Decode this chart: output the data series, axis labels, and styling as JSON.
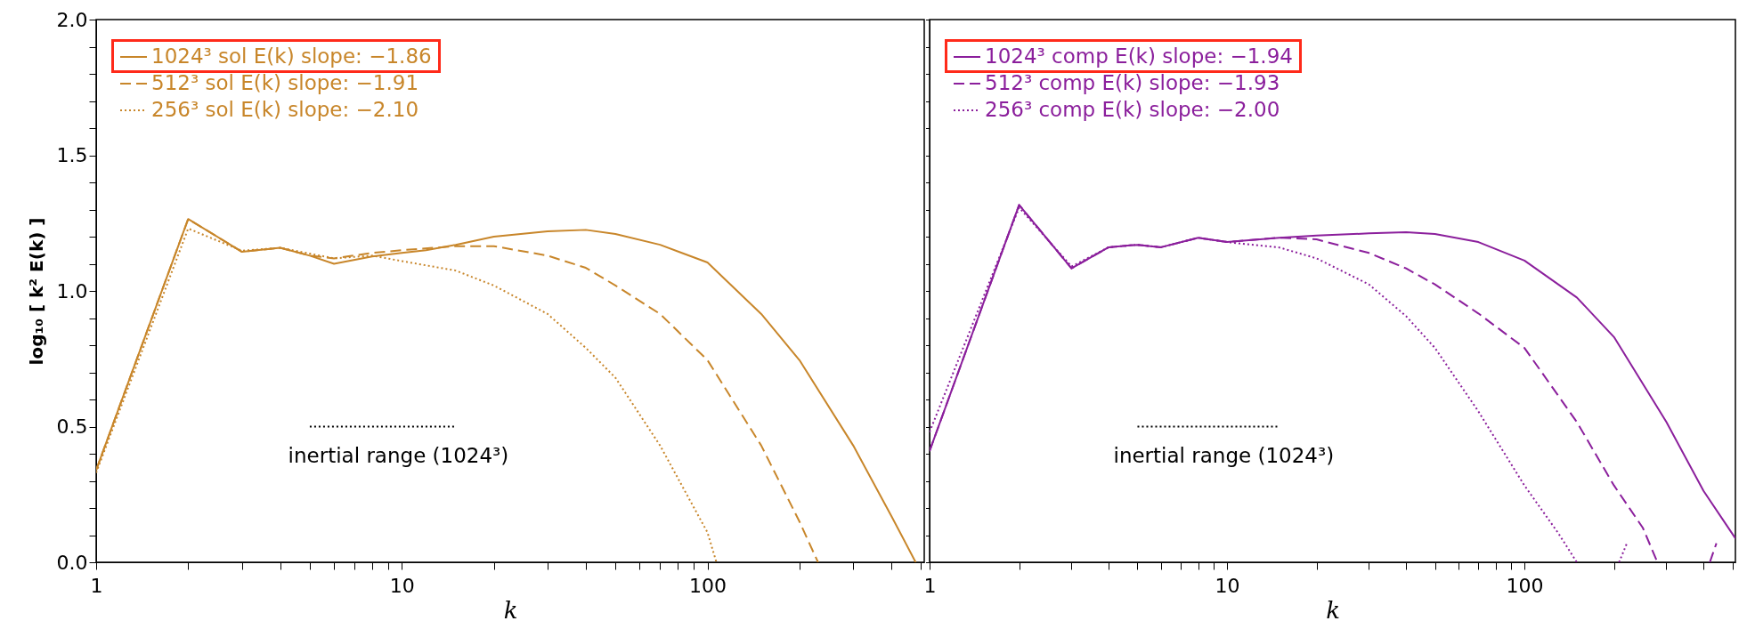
{
  "chart_data": [
    {
      "type": "line",
      "log": "x",
      "xlabel": "k",
      "ylabel": "log₁₀ [ k² E(k) ]",
      "xlim": [
        1,
        512
      ],
      "ylim": [
        0,
        2.0
      ],
      "xticks": [
        1,
        {
          "value": 2,
          "label": null
        },
        {
          "value": 3,
          "label": null
        },
        {
          "value": 4,
          "label": null
        },
        {
          "value": 5,
          "label": null
        },
        {
          "value": 6,
          "label": null
        },
        {
          "value": 7,
          "label": null
        },
        {
          "value": 8,
          "label": null
        },
        {
          "value": 9,
          "label": null
        },
        10,
        {
          "value": 20,
          "label": null
        },
        {
          "value": 30,
          "label": null
        },
        {
          "value": 40,
          "label": null
        },
        {
          "value": 50,
          "label": null
        },
        {
          "value": 60,
          "label": null
        },
        {
          "value": 70,
          "label": null
        },
        {
          "value": 80,
          "label": null
        },
        {
          "value": 90,
          "label": null
        },
        100,
        {
          "value": 200,
          "label": null
        },
        {
          "value": 300,
          "label": null
        },
        {
          "value": 400,
          "label": null
        },
        {
          "value": 500,
          "label": null
        }
      ],
      "yticks": [
        {
          "value": 0,
          "label": "0.0"
        },
        {
          "value": 0.1,
          "label": null
        },
        {
          "value": 0.2,
          "label": null
        },
        {
          "value": 0.3,
          "label": null
        },
        {
          "value": 0.4,
          "label": null
        },
        0.5,
        {
          "value": 0.6,
          "label": null
        },
        {
          "value": 0.7,
          "label": null
        },
        {
          "value": 0.8,
          "label": null
        },
        {
          "value": 0.9,
          "label": null
        },
        {
          "value": 1,
          "label": "1.0"
        },
        {
          "value": 1.1,
          "label": null
        },
        {
          "value": 1.2,
          "label": null
        },
        {
          "value": 1.3,
          "label": null
        },
        {
          "value": 1.4,
          "label": null
        },
        1.5,
        {
          "value": 1.6,
          "label": null
        },
        {
          "value": 1.7,
          "label": null
        },
        {
          "value": 1.8,
          "label": null
        },
        {
          "value": 1.9,
          "label": null
        },
        {
          "value": 2,
          "label": "2.0"
        }
      ],
      "grid": false,
      "legend": "top left",
      "marker": "none",
      "series": [
        {
          "name": "1024³ sol   E(k)   slope: −1.86",
          "color": "#c8862a",
          "line_style": "solid",
          "x": [
            1,
            2,
            3,
            4,
            5,
            6,
            8,
            10,
            12,
            15,
            20,
            30,
            40,
            50,
            70,
            100,
            150,
            200,
            300,
            400,
            480
          ],
          "values": [
            0.34,
            1.265,
            1.144,
            1.159,
            1.13,
            1.1,
            1.127,
            1.14,
            1.15,
            1.17,
            1.2,
            1.22,
            1.225,
            1.21,
            1.17,
            1.105,
            0.915,
            0.745,
            0.43,
            0.17,
            0.0
          ]
        },
        {
          "name": "512³ sol   E(k)   slope: −1.91",
          "color": "#c8862a",
          "line_style": "dashed",
          "x": [
            1,
            2,
            3,
            4,
            5,
            6,
            8,
            10,
            15,
            20,
            30,
            40,
            50,
            70,
            100,
            150,
            200,
            230
          ],
          "values": [
            0.34,
            1.265,
            1.144,
            1.159,
            1.13,
            1.12,
            1.14,
            1.15,
            1.165,
            1.165,
            1.13,
            1.085,
            1.02,
            0.915,
            0.745,
            0.43,
            0.15,
            0.0
          ]
        },
        {
          "name": "256³ sol   E(k)   slope: −2.10",
          "color": "#c8862a",
          "line_style": "dotted",
          "x": [
            1,
            2,
            3,
            4,
            6,
            8,
            10,
            15,
            20,
            30,
            40,
            50,
            70,
            100,
            107
          ],
          "values": [
            0.33,
            1.23,
            1.148,
            1.159,
            1.12,
            1.13,
            1.11,
            1.075,
            1.02,
            0.915,
            0.79,
            0.68,
            0.43,
            0.11,
            0.0
          ]
        },
        {
          "color": "#000000",
          "line_style": "dotted",
          "x": [
            5,
            15
          ],
          "values": [
            0.5,
            0.5
          ]
        }
      ],
      "annotations": [
        "inertial range (1024³)"
      ]
    },
    {
      "type": "line",
      "log": "x",
      "xlabel": "k",
      "xlim": [
        1,
        512
      ],
      "ylim": [
        0,
        2.0
      ],
      "tick_labels": "x",
      "xticks": [
        1,
        {
          "value": 2,
          "label": null
        },
        {
          "value": 3,
          "label": null
        },
        {
          "value": 4,
          "label": null
        },
        {
          "value": 5,
          "label": null
        },
        {
          "value": 6,
          "label": null
        },
        {
          "value": 7,
          "label": null
        },
        {
          "value": 8,
          "label": null
        },
        {
          "value": 9,
          "label": null
        },
        10,
        {
          "value": 20,
          "label": null
        },
        {
          "value": 30,
          "label": null
        },
        {
          "value": 40,
          "label": null
        },
        {
          "value": 50,
          "label": null
        },
        {
          "value": 60,
          "label": null
        },
        {
          "value": 70,
          "label": null
        },
        {
          "value": 80,
          "label": null
        },
        {
          "value": 90,
          "label": null
        },
        100,
        {
          "value": 200,
          "label": null
        },
        {
          "value": 300,
          "label": null
        },
        {
          "value": 400,
          "label": null
        },
        {
          "value": 500,
          "label": null
        }
      ],
      "yticks": [
        {
          "value": 0,
          "label": null
        },
        {
          "value": 0.1,
          "label": null
        },
        {
          "value": 0.2,
          "label": null
        },
        {
          "value": 0.3,
          "label": null
        },
        {
          "value": 0.4,
          "label": null
        },
        {
          "value": 0.5,
          "label": null
        },
        {
          "value": 0.6,
          "label": null
        },
        {
          "value": 0.7,
          "label": null
        },
        {
          "value": 0.8,
          "label": null
        },
        {
          "value": 0.9,
          "label": null
        },
        {
          "value": 1,
          "label": null
        },
        {
          "value": 1.1,
          "label": null
        },
        {
          "value": 1.2,
          "label": null
        },
        {
          "value": 1.3,
          "label": null
        },
        {
          "value": 1.4,
          "label": null
        },
        {
          "value": 1.5,
          "label": null
        },
        {
          "value": 1.6,
          "label": null
        },
        {
          "value": 1.7,
          "label": null
        },
        {
          "value": 1.8,
          "label": null
        },
        {
          "value": 1.9,
          "label": null
        },
        {
          "value": 2,
          "label": null
        }
      ],
      "grid": false,
      "legend": "top left",
      "marker": "none",
      "series": [
        {
          "name": "1024³ comp   E(k)   slope: −1.94",
          "color": "#8b1f9c",
          "line_style": "solid",
          "x": [
            1,
            2,
            3,
            4,
            5,
            6,
            8,
            10,
            15,
            20,
            30,
            40,
            50,
            70,
            100,
            150,
            200,
            300,
            400,
            512
          ],
          "values": [
            0.41,
            1.317,
            1.083,
            1.161,
            1.17,
            1.161,
            1.196,
            1.18,
            1.196,
            1.204,
            1.212,
            1.216,
            1.21,
            1.18,
            1.112,
            0.976,
            0.83,
            0.517,
            0.263,
            0.088
          ]
        },
        {
          "name": "512³ comp   E(k)   slope: −1.93",
          "color": "#8b1f9c",
          "line_style": "dashed",
          "x": [
            1,
            2,
            3,
            4,
            5,
            6,
            8,
            10,
            15,
            20,
            30,
            40,
            50,
            70,
            100,
            150,
            200,
            250,
            280,
            350,
            420,
            442
          ],
          "values": [
            0.41,
            1.317,
            1.083,
            1.161,
            1.17,
            1.161,
            1.196,
            1.18,
            1.196,
            1.19,
            1.14,
            1.083,
            1.024,
            0.917,
            0.79,
            0.517,
            0.283,
            0.127,
            0.0,
            null,
            0.0,
            0.07
          ]
        },
        {
          "name": "256³ comp   E(k)   slope: −2.00",
          "color": "#8b1f9c",
          "line_style": "dotted",
          "x": [
            1,
            2,
            3,
            4,
            5,
            6,
            8,
            10,
            15,
            20,
            30,
            40,
            50,
            70,
            100,
            130,
            150,
            180,
            208,
            221
          ],
          "values": [
            0.48,
            1.307,
            1.09,
            1.161,
            1.17,
            1.161,
            1.196,
            1.18,
            1.16,
            1.12,
            1.024,
            0.907,
            0.79,
            0.556,
            0.283,
            0.107,
            0.0,
            null,
            0.0,
            0.07
          ]
        },
        {
          "color": "#000000",
          "line_style": "dotted",
          "x": [
            5,
            15
          ],
          "values": [
            0.5,
            0.5
          ]
        }
      ],
      "annotations": [
        "inertial range (1024³)"
      ]
    }
  ]
}
